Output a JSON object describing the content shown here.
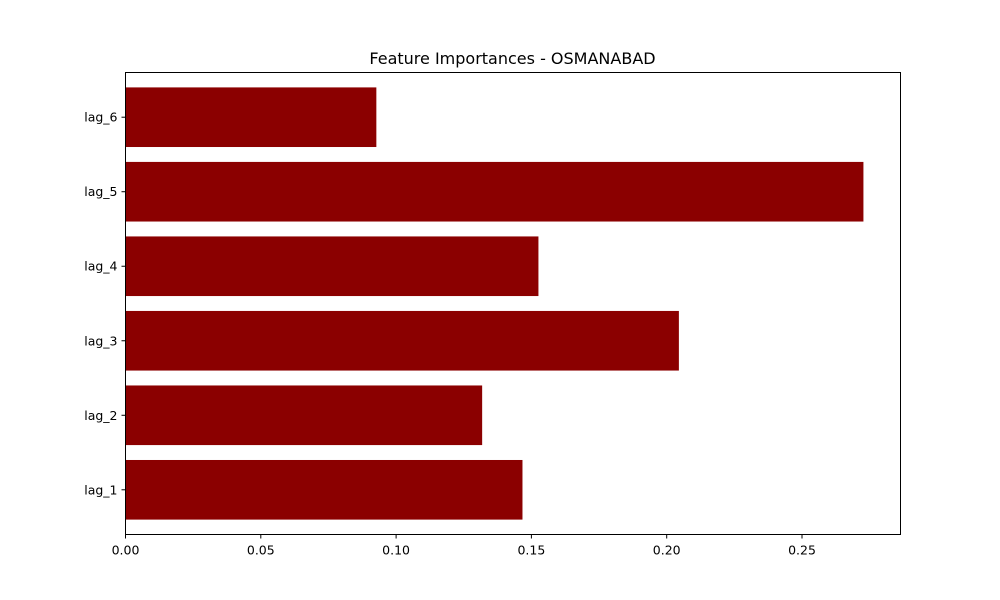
{
  "chart_data": {
    "type": "bar",
    "orientation": "horizontal",
    "title": "Feature Importances - OSMANABAD",
    "xlabel": "",
    "ylabel": "",
    "categories": [
      "lag_1",
      "lag_2",
      "lag_3",
      "lag_4",
      "lag_5",
      "lag_6"
    ],
    "values": [
      0.1467,
      0.1318,
      0.2045,
      0.1526,
      0.2727,
      0.0927
    ],
    "xlim": [
      0,
      0.2864
    ],
    "xticks": [
      "0.00",
      "0.05",
      "0.10",
      "0.15",
      "0.20",
      "0.25"
    ],
    "bar_color": "#8b0000",
    "grid": false,
    "legend": "none"
  }
}
